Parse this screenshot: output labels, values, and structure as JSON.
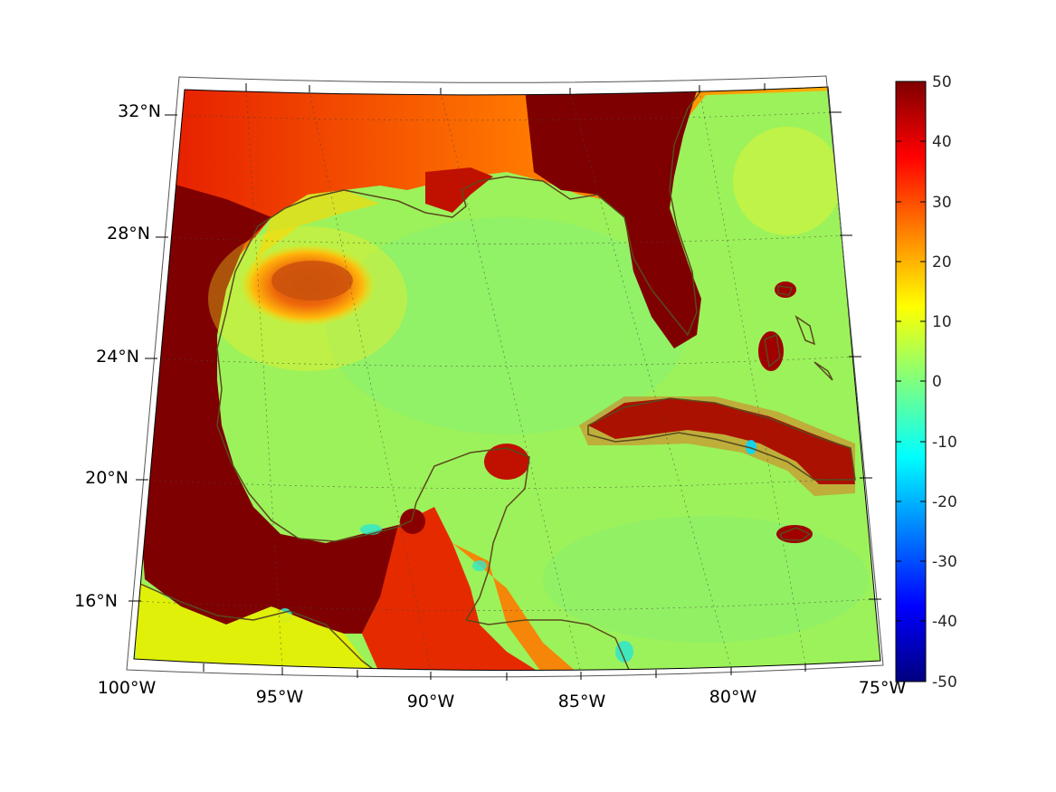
{
  "map": {
    "projection": "conic",
    "lon_range": [
      -100,
      -75
    ],
    "lat_range": [
      14,
      33
    ],
    "graticule": "dotted",
    "lon_labels": [
      "100°W",
      "95°W",
      "90°W",
      "85°W",
      "80°W",
      "75°W"
    ],
    "lat_labels": [
      "32°N",
      "28°N",
      "24°N",
      "20°N",
      "16°N"
    ],
    "coastline_color": "#5a4a1e",
    "colormap": "jet"
  },
  "colorbar": {
    "range": [
      -50,
      50
    ],
    "tick_labels": [
      "50",
      "40",
      "30",
      "20",
      "10",
      "0",
      "-10",
      "-20",
      "-30",
      "-40",
      "-50"
    ]
  }
}
